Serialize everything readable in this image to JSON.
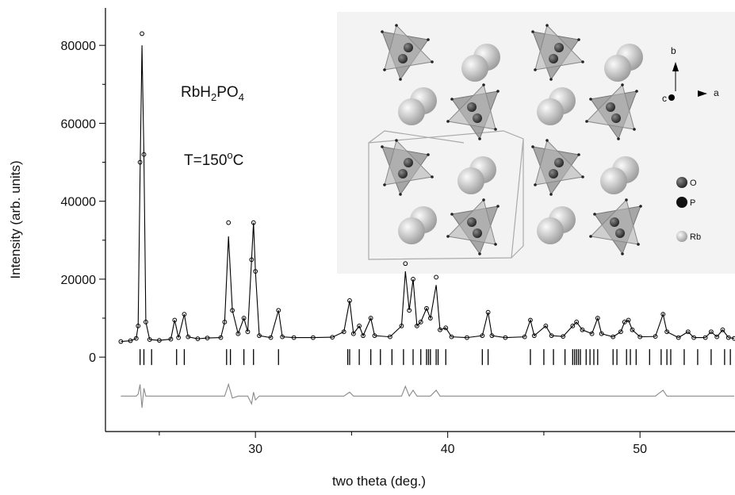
{
  "chart_data": {
    "type": "line",
    "xlabel": "two theta (deg.)",
    "ylabel": "Intensity (arb. units)",
    "annotations": [
      [
        "RbH",
        "2",
        "PO",
        "4"
      ],
      [
        "T=150",
        "o",
        "C"
      ]
    ],
    "inset_labels": {
      "b": "b",
      "a": "a",
      "c": "c",
      "O": "O",
      "P": "P",
      "Rb": "Rb"
    },
    "xlim": [
      22.2,
      54.9
    ],
    "xticks": [
      30,
      40,
      50
    ],
    "xticks_minor": [
      25,
      35,
      45
    ],
    "ylim": [
      -19100,
      89600
    ],
    "yticks": [
      0,
      20000,
      40000,
      60000,
      80000
    ],
    "yticks_minor": [
      10000,
      30000,
      50000,
      70000
    ],
    "x": [
      23.0,
      23.5,
      23.8,
      23.9,
      24.0,
      24.1,
      24.2,
      24.3,
      24.5,
      25.0,
      25.6,
      25.8,
      26.0,
      26.3,
      26.5,
      27.0,
      27.5,
      28.2,
      28.4,
      28.6,
      28.8,
      29.1,
      29.4,
      29.6,
      29.8,
      29.9,
      30.0,
      30.2,
      30.8,
      31.2,
      31.4,
      32.0,
      33.0,
      34.0,
      34.6,
      34.9,
      35.1,
      35.4,
      35.6,
      36.0,
      36.2,
      37.0,
      37.6,
      37.8,
      38.0,
      38.2,
      38.4,
      38.6,
      38.9,
      39.1,
      39.4,
      39.6,
      39.9,
      40.2,
      41.0,
      41.8,
      42.1,
      42.3,
      43.0,
      44.0,
      44.3,
      44.5,
      45.1,
      45.4,
      46.0,
      46.5,
      46.7,
      47.0,
      47.5,
      47.8,
      48.0,
      48.6,
      49.0,
      49.2,
      49.4,
      49.6,
      50.0,
      50.8,
      51.2,
      51.4,
      52.0,
      52.5,
      52.8,
      53.4,
      53.7,
      54.0,
      54.3,
      54.6,
      54.9
    ],
    "series": [
      {
        "style": "circles",
        "color": "#000000",
        "values": [
          4000,
          4200,
          4800,
          8000,
          50000,
          83000,
          52000,
          9000,
          4500,
          4300,
          4600,
          9500,
          5000,
          11000,
          5200,
          4700,
          4900,
          5000,
          9000,
          34500,
          12000,
          6000,
          10000,
          6500,
          25000,
          34500,
          22000,
          5500,
          5000,
          12000,
          5200,
          5000,
          5000,
          5100,
          6500,
          14500,
          6000,
          8000,
          5500,
          10000,
          5500,
          5200,
          8000,
          24000,
          12000,
          20000,
          8000,
          9000,
          12500,
          10000,
          20500,
          7000,
          7500,
          5200,
          5000,
          5500,
          11500,
          5500,
          5000,
          5200,
          9500,
          5500,
          8000,
          5500,
          5300,
          8000,
          9000,
          7000,
          6000,
          10000,
          6000,
          5200,
          6500,
          9000,
          9500,
          7000,
          5200,
          5300,
          11000,
          6500,
          5000,
          6500,
          5000,
          5000,
          6500,
          5200,
          7000,
          5000,
          4800
        ]
      },
      {
        "style": "line",
        "color": "#000000",
        "values": [
          4000,
          4200,
          4800,
          8000,
          47000,
          80000,
          52000,
          9000,
          4500,
          4300,
          4600,
          9500,
          5000,
          11000,
          5200,
          4700,
          4900,
          5000,
          9000,
          31000,
          12000,
          6000,
          10000,
          6500,
          25000,
          34500,
          22000,
          5500,
          5000,
          12000,
          5200,
          5000,
          5000,
          5100,
          6500,
          14500,
          6000,
          8000,
          5500,
          10000,
          5500,
          5200,
          8000,
          22000,
          12000,
          20000,
          8000,
          9000,
          12500,
          10000,
          18500,
          7000,
          7500,
          5200,
          5000,
          5500,
          11500,
          5500,
          5000,
          5200,
          9500,
          5500,
          8000,
          5500,
          5300,
          8000,
          9000,
          7000,
          6000,
          10000,
          6000,
          5200,
          6500,
          9000,
          9500,
          7000,
          5200,
          5300,
          11000,
          6500,
          5000,
          6500,
          5000,
          5000,
          6500,
          5200,
          7000,
          5000,
          4800
        ]
      },
      {
        "style": "line",
        "color": "#8a8a8a",
        "values": [
          -10000,
          -10000,
          -10000,
          -9500,
          -7000,
          -13000,
          -8000,
          -10000,
          -10000,
          -10000,
          -10000,
          -10000,
          -10000,
          -10000,
          -10000,
          -10000,
          -10000,
          -10000,
          -10000,
          -7000,
          -10500,
          -10000,
          -10000,
          -10000,
          -12000,
          -9000,
          -11000,
          -10000,
          -10000,
          -10000,
          -10000,
          -10000,
          -10000,
          -10000,
          -10000,
          -9000,
          -10000,
          -10000,
          -10000,
          -10000,
          -10000,
          -10000,
          -10000,
          -7500,
          -10000,
          -8500,
          -10000,
          -10000,
          -10000,
          -10000,
          -8500,
          -10000,
          -10000,
          -10000,
          -10000,
          -10000,
          -10000,
          -10000,
          -10000,
          -10000,
          -10000,
          -10000,
          -10000,
          -10000,
          -10000,
          -10000,
          -10000,
          -10000,
          -10000,
          -10000,
          -10000,
          -10000,
          -10000,
          -10000,
          -10000,
          -10000,
          -10000,
          -10000,
          -8500,
          -10000,
          -10000,
          -10000,
          -10000,
          -10000,
          -10000,
          -10000,
          -10000,
          -10000,
          -10000
        ]
      }
    ],
    "bragg_color": "#000000",
    "bragg": [
      24.0,
      24.2,
      24.6,
      25.9,
      26.3,
      28.5,
      28.7,
      29.4,
      29.9,
      31.2,
      34.8,
      34.9,
      35.4,
      36.0,
      36.5,
      37.1,
      37.7,
      38.2,
      38.6,
      38.9,
      39.0,
      39.1,
      39.4,
      39.5,
      39.9,
      41.8,
      42.1,
      44.3,
      45.0,
      45.5,
      46.1,
      46.5,
      46.6,
      46.7,
      46.8,
      46.9,
      47.2,
      47.4,
      47.6,
      47.8,
      48.6,
      48.8,
      49.3,
      49.5,
      49.8,
      50.5,
      51.1,
      51.4,
      51.6,
      52.3,
      53.0,
      53.7,
      54.4,
      54.7
    ]
  }
}
